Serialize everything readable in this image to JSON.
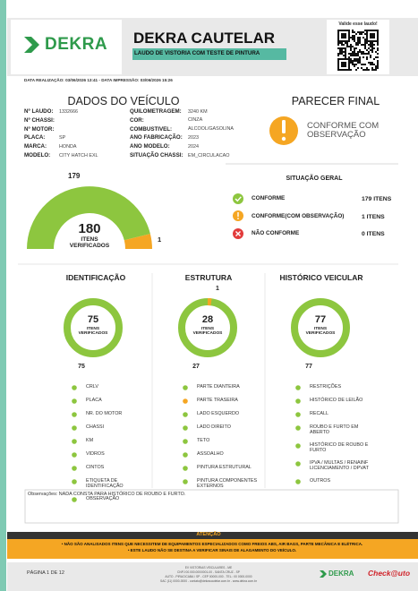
{
  "header": {
    "logo": "DEKRA",
    "title": "DEKRA CAUTELAR",
    "subtitle": "LAUDO DE VISTORIA COM TESTE DE PINTURA",
    "validate": "Valide esse laudo!"
  },
  "dates": "DATA REALIZAÇÃO: 03/06/2026 13:41 - DATA IMPRESSÃO: 03/06/2026 15:26",
  "vehicle": {
    "title": "DADOS DO VEÍCULO",
    "left": [
      {
        "label": "Nº LAUDO:",
        "value": "1332666"
      },
      {
        "label": "Nº CHASSI:"
      },
      {
        "label": "Nº MOTOR:"
      },
      {
        "label": "PLACA:",
        "value": "SP"
      },
      {
        "label": "MARCA:",
        "value": "HONDA"
      },
      {
        "label": "MODELO:",
        "value": "CITY HATCH EXL"
      }
    ],
    "right": [
      {
        "label": "QUILOMETRAGEM:",
        "value": "3240 KM"
      },
      {
        "label": "COR:",
        "value": "CINZA"
      },
      {
        "label": "COMBUSTIVEL:",
        "value": "ALCOOL/GASOLINA"
      },
      {
        "label": "ANO FABRICAÇÃO:",
        "value": "2023"
      },
      {
        "label": "ANO MODELO:",
        "value": "2024"
      },
      {
        "label": "SITUAÇÃO CHASSI:",
        "value": "EM_CIRCULACAO"
      }
    ]
  },
  "verdict": {
    "title": "PARECER FINAL",
    "text": "CONFORME COM OBSERVAÇÃO"
  },
  "gauge": {
    "conforme": 179,
    "total": 180,
    "caption": "ITENS VERIFICADOS",
    "observacao": 1
  },
  "summary": {
    "title": "SITUAÇÃO GERAL",
    "rows": [
      {
        "label": "CONFORME",
        "count": "179 ITENS"
      },
      {
        "label": "CONFORME(COM OBSERVAÇÃO)",
        "count": "1 ITENS"
      },
      {
        "label": "NÃO CONFORME",
        "count": "0 ITENS"
      }
    ]
  },
  "sections": [
    {
      "title": "IDENTIFICAÇÃO",
      "total": 75,
      "caption": "ITENS VERIFICADOS",
      "bottom": 75,
      "items": [
        {
          "label": "CRLV",
          "color": "#8dc63f"
        },
        {
          "label": "PLACA",
          "color": "#8dc63f"
        },
        {
          "label": "NR. DO MOTOR",
          "color": "#8dc63f"
        },
        {
          "label": "CHASSI",
          "color": "#8dc63f"
        },
        {
          "label": "KM",
          "color": "#8dc63f"
        },
        {
          "label": "VIDROS",
          "color": "#8dc63f"
        },
        {
          "label": "CINTOS",
          "color": "#8dc63f"
        },
        {
          "label": "ETIQUETA DE IDENTIFICAÇÃO",
          "color": "#8dc63f"
        },
        {
          "label": "OBSERVAÇÃO",
          "color": "#8dc63f"
        }
      ]
    },
    {
      "title": "ESTRUTURA",
      "total": 28,
      "caption": "ITENS VERIFICADOS",
      "bottom": 27,
      "top": 1,
      "items": [
        {
          "label": "PARTE DIANTEIRA",
          "color": "#8dc63f"
        },
        {
          "label": "PARTE TRASEIRA",
          "color": "#f5a623"
        },
        {
          "label": "LADO ESQUERDO",
          "color": "#8dc63f"
        },
        {
          "label": "LADO DIREITO",
          "color": "#8dc63f"
        },
        {
          "label": "TETO",
          "color": "#8dc63f"
        },
        {
          "label": "ASSOALHO",
          "color": "#8dc63f"
        },
        {
          "label": "PINTURA ESTRUTURAL",
          "color": "#8dc63f"
        },
        {
          "label": "PINTURA COMPONENTES EXTERNOS",
          "color": "#8dc63f"
        }
      ]
    },
    {
      "title": "HISTÓRICO VEICULAR",
      "total": 77,
      "caption": "ITENS VERIFICADOS",
      "bottom": 77,
      "items": [
        {
          "label": "RESTRIÇÕES",
          "color": "#8dc63f"
        },
        {
          "label": "HISTÓRICO DE LEILÃO",
          "color": "#8dc63f"
        },
        {
          "label": "RECALL",
          "color": "#8dc63f"
        },
        {
          "label": "ROUBO E FURTO EM ABERTO",
          "color": "#8dc63f"
        },
        {
          "label": "HISTÓRICO DE ROUBO E FURTO",
          "color": "#8dc63f"
        },
        {
          "label": "IPVA / MULTAS / RENAINF LICENCIAMENTO / DPVAT",
          "color": "#8dc63f"
        },
        {
          "label": "OUTROS",
          "color": "#8dc63f"
        }
      ]
    }
  ],
  "observations": "Observações: NADA CONSTA PARA HISTÓRICO DE ROUBO E FURTO.",
  "attention": {
    "title": "ATENÇÃO",
    "lines": [
      "• NÃO SÃO ANALISADOS ITENS QUE NECESSITEM DE EQUIPAMENTOS ESPECIALIZADOS COMO FREIOS ABS, AIR BAGS, PARTE MECÂNICA E ELÉTRICA.",
      "• ESTE LAUDO NÃO SE DESTINA A VERIFICAR SINAIS DE ALAGAMENTO DO VEÍCULO."
    ]
  },
  "footer": {
    "page": "PÁGINA 1 DE 12",
    "address": [
      "EV VISTORIAS VEICULARES - ME",
      "CNPJ 00.000.000/0001-00 - SANTA CRUZ - SP",
      "AUTO - PIRACICABA / SP - CEP 00000-000 - TEL.: 00 0000-0000",
      "SAC (11) 0000-0000 - contato@dekracautelar.com.br - www.dekra.com.br"
    ],
    "logos": [
      "DEKRA",
      "Check@uto"
    ]
  }
}
